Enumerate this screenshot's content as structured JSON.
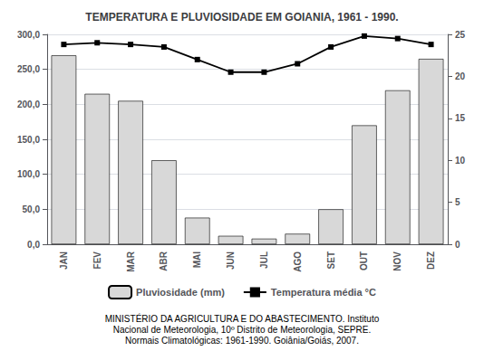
{
  "chart_data": {
    "type": "bar",
    "title": "TEMPERATURA E PLUVIOSIDADE EM GOIANIA, 1961 - 1990.",
    "categories": [
      "JAN",
      "FEV",
      "MAR",
      "ABR",
      "MAI",
      "JUN",
      "JUL",
      "AGO",
      "SET",
      "OUT",
      "NOV",
      "DEZ"
    ],
    "series": [
      {
        "name": "Pluviosidade (mm)",
        "type": "bar",
        "color": "#d8d8d8",
        "values": [
          270,
          215,
          205,
          120,
          38,
          12,
          8,
          15,
          50,
          170,
          220,
          265
        ]
      },
      {
        "name": "Temperatura média °C",
        "type": "line",
        "color": "black",
        "marker": "square",
        "axis": "y2",
        "values": [
          23.8,
          24.0,
          23.8,
          23.5,
          22.0,
          20.5,
          20.5,
          21.5,
          23.5,
          24.8,
          24.5,
          23.8
        ]
      }
    ],
    "ylim": [
      0,
      300
    ],
    "yticks": [
      {
        "value": 0,
        "label": "0,0"
      },
      {
        "value": 50,
        "label": "50,0"
      },
      {
        "value": 100,
        "label": "100,0"
      },
      {
        "value": 150,
        "label": "150,0"
      },
      {
        "value": 200,
        "label": "200,0"
      },
      {
        "value": 250,
        "label": "250,0"
      },
      {
        "value": 300,
        "label": "300,0"
      }
    ],
    "y2lim": [
      0,
      25
    ],
    "y2ticks": [
      0,
      5,
      10,
      15,
      20,
      25
    ],
    "grid": true,
    "legend": "bottom",
    "annotations": [
      "MINISTÉRIO DA AGRICULTURA E DO ABASTECIMENTO. Instituto",
      "Nacional de Meteorologia, 10º Distrito de Meteorologia, SEPRE.",
      "Normais Climatológicas: 1961-1990. Goiânia/Goiás, 2007."
    ]
  }
}
